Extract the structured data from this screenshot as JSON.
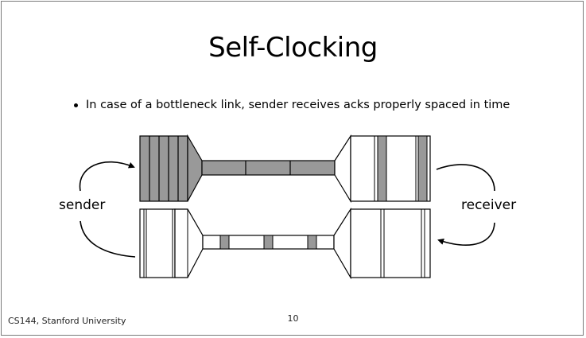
{
  "slide": {
    "title": "Self-Clocking",
    "bullet": "In case of a bottleneck link, sender receives acks properly spaced in time"
  },
  "diagram": {
    "sender_label": "sender",
    "receiver_label": "receiver",
    "data_fill_color": "#999999",
    "line_color": "#000000"
  },
  "footer": {
    "course": "CS144, Stanford University",
    "page_number": "10"
  }
}
